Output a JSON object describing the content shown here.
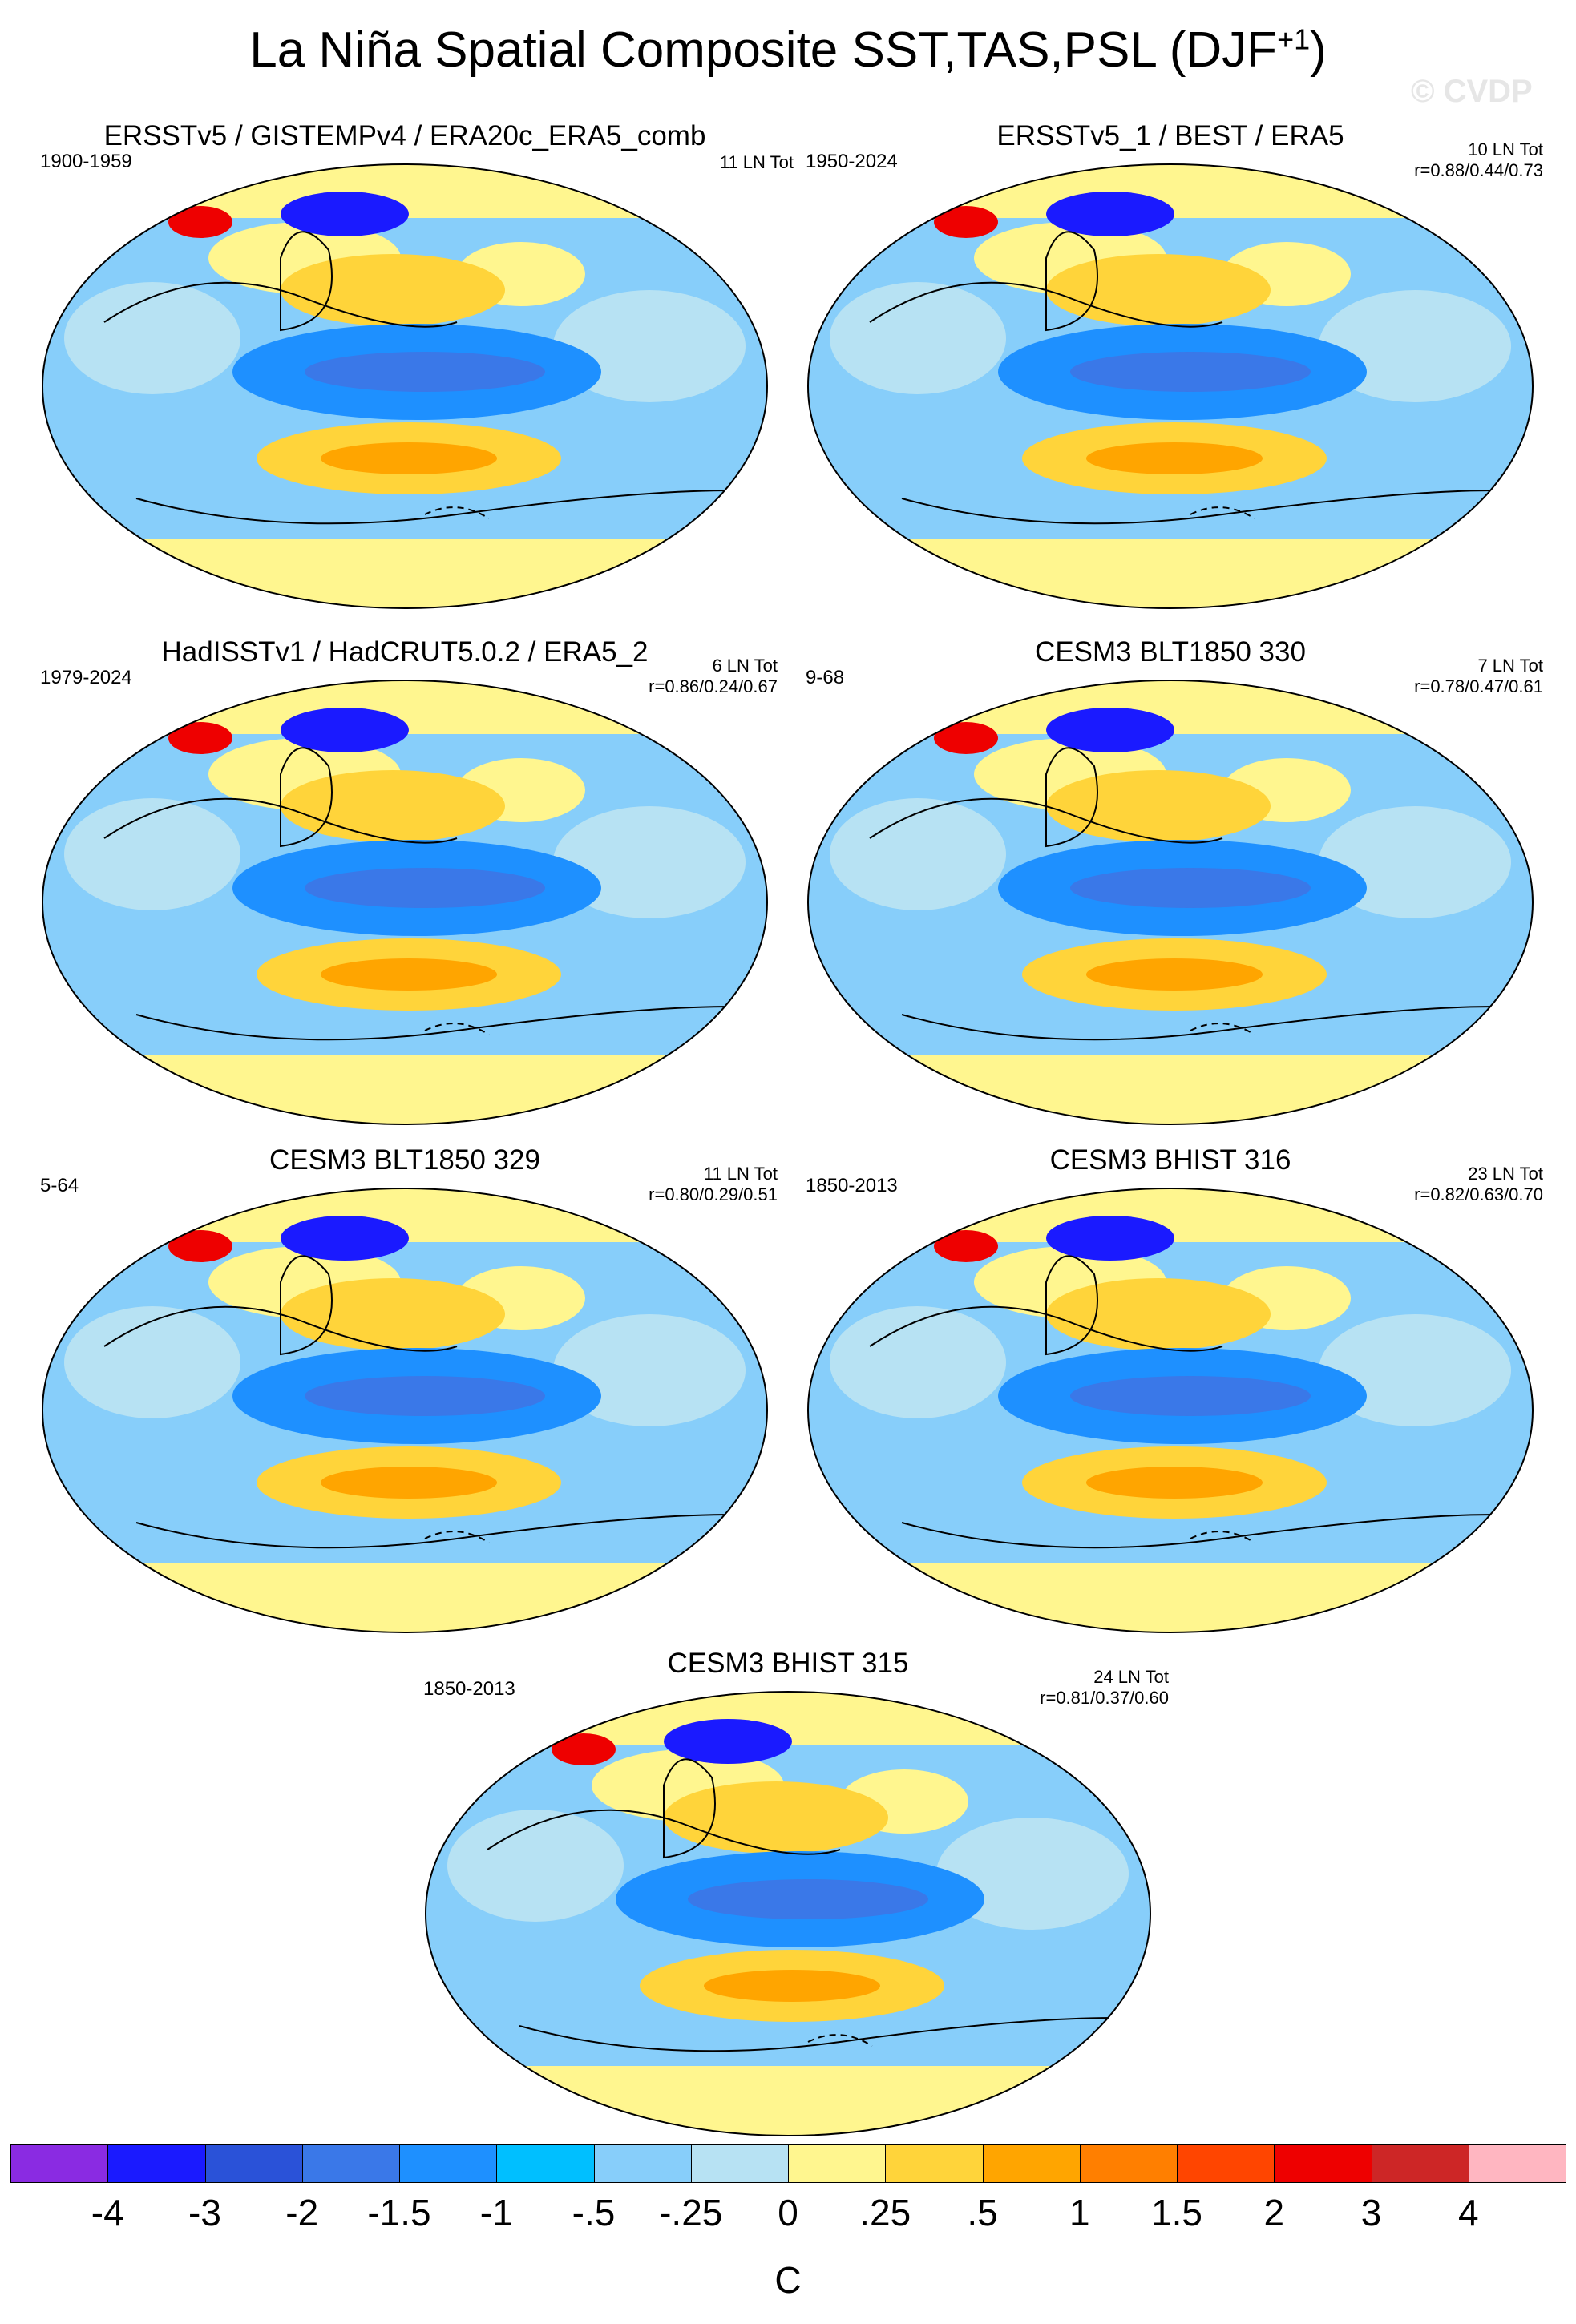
{
  "figure": {
    "title": "La Niña Spatial Composite SST,TAS,PSL (DJF",
    "title_sup": "+1",
    "title_end": ")",
    "watermark": "© CVDP"
  },
  "panels": [
    {
      "title": "ERSSTv5 / GISTEMPv4 / ERA20c_ERA5_comb",
      "period": "1900-1959",
      "count": "11 LN Tot",
      "corr": ""
    },
    {
      "title": "ERSSTv5_1 / BEST / ERA5",
      "period": "1950-2024",
      "count": "10 LN Tot",
      "corr": "r=0.88/0.44/0.73"
    },
    {
      "title": "HadISSTv1 / HadCRUT5.0.2 / ERA5_2",
      "period": "1979-2024",
      "count": "6 LN Tot",
      "corr": "r=0.86/0.24/0.67"
    },
    {
      "title": "CESM3 BLT1850 330",
      "period": "9-68",
      "count": "7 LN Tot",
      "corr": "r=0.78/0.47/0.61"
    },
    {
      "title": "CESM3 BLT1850 329",
      "period": "5-64",
      "count": "11 LN Tot",
      "corr": "r=0.80/0.29/0.51"
    },
    {
      "title": "CESM3 BHIST 316",
      "period": "1850-2013",
      "count": "23 LN Tot",
      "corr": "r=0.82/0.63/0.70"
    },
    {
      "title": "CESM3 BHIST 315",
      "period": "1850-2013",
      "count": "24 LN Tot",
      "corr": "r=0.81/0.37/0.60"
    }
  ],
  "colorbar": {
    "colors": [
      "#8a2be2",
      "#1a1aff",
      "#2a52d8",
      "#3a78e8",
      "#1e90ff",
      "#00bfff",
      "#87cefa",
      "#b7e2f3",
      "#fff68f",
      "#ffd43a",
      "#ffa500",
      "#ff7f00",
      "#ff4500",
      "#ee0000",
      "#cd2626",
      "#ffb6c1"
    ],
    "labels": [
      "-4",
      "-3",
      "-2",
      "-1.5",
      "-1",
      "-.5",
      "-.25",
      "0",
      ".25",
      ".5",
      "1",
      "1.5",
      "2",
      "3",
      "4"
    ],
    "unit": "C"
  },
  "map_colors": {
    "ocean_base": "#87cefa",
    "light_blue": "#b7e2f3",
    "mid_blue": "#1e90ff",
    "deep_blue": "#3a78e8",
    "yellow": "#fff68f",
    "orange": "#ffd43a",
    "dark_orange": "#ffa500",
    "red": "#ee0000",
    "purple": "#1a1aff"
  }
}
